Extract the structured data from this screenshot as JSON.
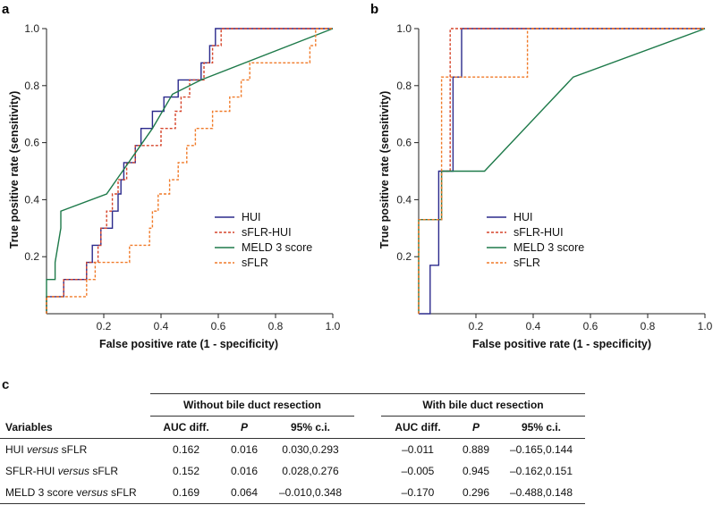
{
  "chart_data": [
    {
      "panel": "a",
      "type": "line",
      "title": "",
      "xlabel": "False positive rate (1 - specificity)",
      "ylabel": "True positive rate (sensitivity)",
      "xlim": [
        0,
        1
      ],
      "ylim": [
        0,
        1
      ],
      "xticks": [
        "0.2",
        "0.4",
        "0.6",
        "0.8",
        "1.0"
      ],
      "yticks": [
        "0.2",
        "0.4",
        "0.6",
        "0.8",
        "1.0"
      ],
      "legend_position": "bottom-right",
      "series": [
        {
          "name": "HUI",
          "color": "#2b2a8c",
          "dash": "solid",
          "points": [
            [
              0,
              0
            ],
            [
              0,
              0.06
            ],
            [
              0.06,
              0.06
            ],
            [
              0.06,
              0.12
            ],
            [
              0.14,
              0.12
            ],
            [
              0.14,
              0.18
            ],
            [
              0.16,
              0.18
            ],
            [
              0.16,
              0.24
            ],
            [
              0.19,
              0.24
            ],
            [
              0.19,
              0.3
            ],
            [
              0.23,
              0.3
            ],
            [
              0.23,
              0.36
            ],
            [
              0.25,
              0.36
            ],
            [
              0.25,
              0.42
            ],
            [
              0.26,
              0.42
            ],
            [
              0.26,
              0.47
            ],
            [
              0.27,
              0.47
            ],
            [
              0.27,
              0.53
            ],
            [
              0.31,
              0.53
            ],
            [
              0.31,
              0.59
            ],
            [
              0.33,
              0.59
            ],
            [
              0.33,
              0.65
            ],
            [
              0.37,
              0.65
            ],
            [
              0.37,
              0.71
            ],
            [
              0.41,
              0.71
            ],
            [
              0.41,
              0.76
            ],
            [
              0.46,
              0.76
            ],
            [
              0.46,
              0.82
            ],
            [
              0.54,
              0.82
            ],
            [
              0.54,
              0.88
            ],
            [
              0.57,
              0.88
            ],
            [
              0.57,
              0.94
            ],
            [
              0.59,
              0.94
            ],
            [
              0.59,
              1
            ],
            [
              1,
              1
            ]
          ]
        },
        {
          "name": "sFLR-HUI",
          "color": "#d6452b",
          "dash": "dashed",
          "points": [
            [
              0,
              0
            ],
            [
              0,
              0.06
            ],
            [
              0.06,
              0.06
            ],
            [
              0.06,
              0.12
            ],
            [
              0.14,
              0.12
            ],
            [
              0.14,
              0.18
            ],
            [
              0.18,
              0.18
            ],
            [
              0.18,
              0.24
            ],
            [
              0.19,
              0.24
            ],
            [
              0.19,
              0.3
            ],
            [
              0.21,
              0.3
            ],
            [
              0.21,
              0.36
            ],
            [
              0.23,
              0.36
            ],
            [
              0.23,
              0.42
            ],
            [
              0.25,
              0.42
            ],
            [
              0.25,
              0.47
            ],
            [
              0.28,
              0.47
            ],
            [
              0.28,
              0.53
            ],
            [
              0.31,
              0.53
            ],
            [
              0.31,
              0.59
            ],
            [
              0.4,
              0.59
            ],
            [
              0.4,
              0.65
            ],
            [
              0.45,
              0.65
            ],
            [
              0.45,
              0.71
            ],
            [
              0.47,
              0.71
            ],
            [
              0.47,
              0.76
            ],
            [
              0.5,
              0.76
            ],
            [
              0.5,
              0.82
            ],
            [
              0.55,
              0.82
            ],
            [
              0.55,
              0.88
            ],
            [
              0.58,
              0.88
            ],
            [
              0.58,
              0.94
            ],
            [
              0.61,
              0.94
            ],
            [
              0.61,
              1
            ],
            [
              1,
              1
            ]
          ]
        },
        {
          "name": "MELD 3 score",
          "color": "#1e7a4a",
          "dash": "solid",
          "points": [
            [
              0,
              0
            ],
            [
              0,
              0.12
            ],
            [
              0.03,
              0.12
            ],
            [
              0.03,
              0.18
            ],
            [
              0.05,
              0.3
            ],
            [
              0.05,
              0.36
            ],
            [
              0.21,
              0.42
            ],
            [
              0.37,
              0.65
            ],
            [
              0.44,
              0.77
            ],
            [
              0.54,
              0.82
            ],
            [
              1,
              1
            ]
          ]
        },
        {
          "name": "sFLR",
          "color": "#f07a28",
          "dash": "dashed",
          "points": [
            [
              0,
              0
            ],
            [
              0,
              0.06
            ],
            [
              0.14,
              0.06
            ],
            [
              0.14,
              0.12
            ],
            [
              0.17,
              0.12
            ],
            [
              0.17,
              0.18
            ],
            [
              0.29,
              0.18
            ],
            [
              0.29,
              0.24
            ],
            [
              0.36,
              0.24
            ],
            [
              0.36,
              0.3
            ],
            [
              0.37,
              0.3
            ],
            [
              0.37,
              0.36
            ],
            [
              0.39,
              0.36
            ],
            [
              0.39,
              0.42
            ],
            [
              0.43,
              0.42
            ],
            [
              0.43,
              0.47
            ],
            [
              0.46,
              0.47
            ],
            [
              0.46,
              0.53
            ],
            [
              0.49,
              0.53
            ],
            [
              0.49,
              0.59
            ],
            [
              0.52,
              0.59
            ],
            [
              0.52,
              0.65
            ],
            [
              0.58,
              0.65
            ],
            [
              0.58,
              0.71
            ],
            [
              0.64,
              0.71
            ],
            [
              0.64,
              0.76
            ],
            [
              0.68,
              0.76
            ],
            [
              0.68,
              0.82
            ],
            [
              0.71,
              0.82
            ],
            [
              0.71,
              0.88
            ],
            [
              0.92,
              0.88
            ],
            [
              0.92,
              0.94
            ],
            [
              0.94,
              0.94
            ],
            [
              0.94,
              1
            ],
            [
              1,
              1
            ]
          ]
        }
      ]
    },
    {
      "panel": "b",
      "type": "line",
      "title": "",
      "xlabel": "False positive rate (1 - specificity)",
      "ylabel": "True positive rate (sensitivity)",
      "xlim": [
        0,
        1
      ],
      "ylim": [
        0,
        1
      ],
      "xticks": [
        "0.2",
        "0.4",
        "0.6",
        "0.8",
        "1.0"
      ],
      "yticks": [
        "0.2",
        "0.4",
        "0.6",
        "0.8",
        "1.0"
      ],
      "legend_position": "bottom-right",
      "series": [
        {
          "name": "HUI",
          "color": "#2b2a8c",
          "dash": "solid",
          "points": [
            [
              0,
              0
            ],
            [
              0.04,
              0
            ],
            [
              0.04,
              0.17
            ],
            [
              0.07,
              0.17
            ],
            [
              0.07,
              0.5
            ],
            [
              0.12,
              0.5
            ],
            [
              0.12,
              0.83
            ],
            [
              0.15,
              0.83
            ],
            [
              0.15,
              1
            ],
            [
              1,
              1
            ]
          ]
        },
        {
          "name": "sFLR-HUI",
          "color": "#d6452b",
          "dash": "dashed",
          "points": [
            [
              0,
              0
            ],
            [
              0,
              0.33
            ],
            [
              0.08,
              0.33
            ],
            [
              0.08,
              0.5
            ],
            [
              0.11,
              0.5
            ],
            [
              0.11,
              1
            ],
            [
              1,
              1
            ]
          ]
        },
        {
          "name": "MELD 3 score",
          "color": "#1e7a4a",
          "dash": "solid",
          "points": [
            [
              0,
              0
            ],
            [
              0,
              0.33
            ],
            [
              0.08,
              0.33
            ],
            [
              0.08,
              0.5
            ],
            [
              0.23,
              0.5
            ],
            [
              0.54,
              0.83
            ],
            [
              1,
              1
            ]
          ]
        },
        {
          "name": "sFLR",
          "color": "#f07a28",
          "dash": "dashed",
          "points": [
            [
              0,
              0
            ],
            [
              0,
              0.33
            ],
            [
              0.08,
              0.33
            ],
            [
              0.08,
              0.83
            ],
            [
              0.38,
              0.83
            ],
            [
              0.38,
              1
            ],
            [
              1,
              1
            ]
          ]
        }
      ]
    }
  ],
  "table": {
    "letter": "c",
    "group_without": "Without bile duct resection",
    "group_with": "With bile duct resection",
    "headers": {
      "variables": "Variables",
      "auc": "AUC diff.",
      "p": "P",
      "ci": "95% c.i."
    },
    "rows": [
      {
        "pre": "HUI ",
        "italic": "versus",
        "post": " sFLR",
        "without": [
          "0.162",
          "0.016",
          "0.030,0.293"
        ],
        "with": [
          "–0.011",
          "0.889",
          "–0.165,0.144"
        ]
      },
      {
        "pre": "SFLR-HUI ",
        "italic": "versus",
        "post": " sFLR",
        "without": [
          "0.152",
          "0.016",
          "0.028,0.276"
        ],
        "with": [
          "–0.005",
          "0.945",
          "–0.162,0.151"
        ]
      },
      {
        "pre": "MELD 3 score v",
        "italic": "ersus",
        "post": " sFLR",
        "without": [
          "0.169",
          "0.064",
          "–0.010,0.348"
        ],
        "with": [
          "–0.170",
          "0.296",
          "–0.488,0.148"
        ]
      }
    ]
  }
}
